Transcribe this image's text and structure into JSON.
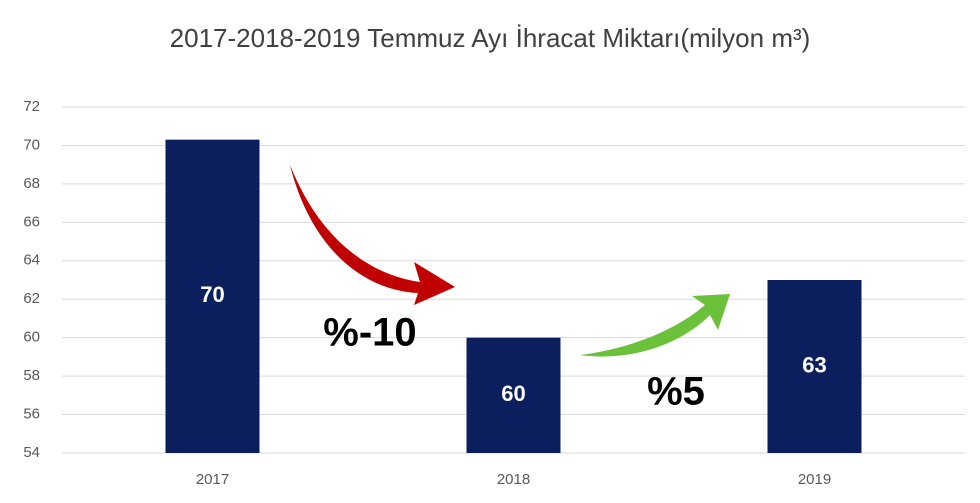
{
  "chart_data": {
    "type": "bar",
    "title": "2017-2018-2019 Temmuz Ayı İhracat Miktarı(milyon m³)",
    "categories": [
      "2017",
      "2018",
      "2019"
    ],
    "values": [
      70.3,
      60,
      63
    ],
    "value_labels": [
      "70",
      "60",
      "63"
    ],
    "color": "#0b1f5e",
    "ylim": [
      54,
      72
    ],
    "yticks": [
      54,
      56,
      58,
      60,
      62,
      64,
      66,
      68,
      70,
      72
    ],
    "grid": true,
    "annotations": [
      "%-10",
      "%5"
    ]
  }
}
